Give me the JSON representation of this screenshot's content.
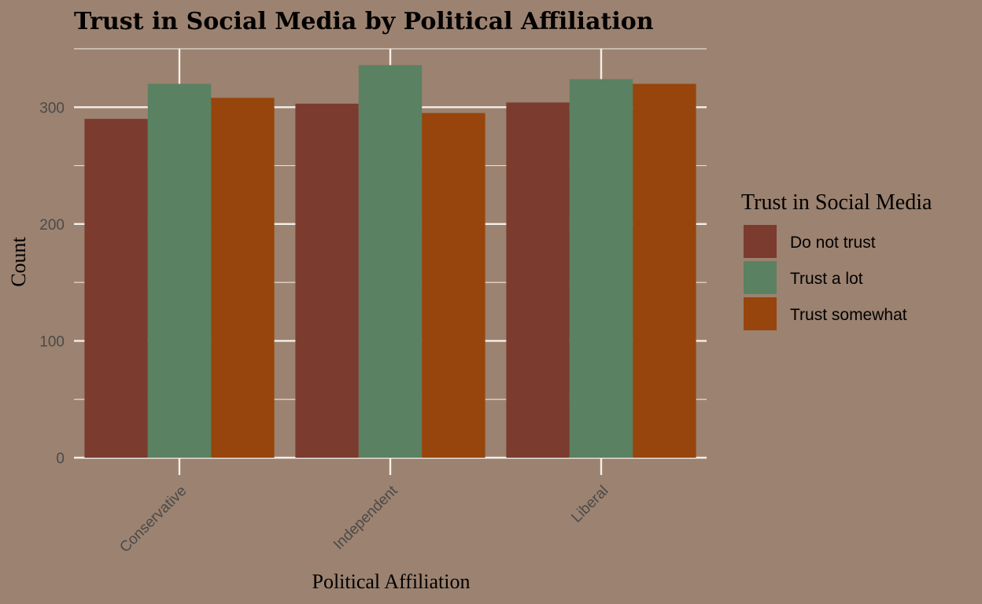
{
  "chart_data": {
    "type": "bar",
    "title": "Trust in Social Media by Political Affiliation",
    "xlabel": "Political Affiliation",
    "ylabel": "Count",
    "categories": [
      "Conservative",
      "Independent",
      "Liberal"
    ],
    "series": [
      {
        "name": "Do not trust",
        "color": "#7b3b2f",
        "values": [
          290,
          303,
          304
        ]
      },
      {
        "name": "Trust a lot",
        "color": "#5a8162",
        "values": [
          320,
          336,
          324
        ]
      },
      {
        "name": "Trust somewhat",
        "color": "#97450c",
        "values": [
          308,
          295,
          320
        ]
      }
    ],
    "yticks": [
      0,
      100,
      200,
      300
    ],
    "ylim": [
      0,
      350
    ],
    "grid": true,
    "legend": {
      "title": "Trust in Social Media",
      "position": "right"
    }
  }
}
